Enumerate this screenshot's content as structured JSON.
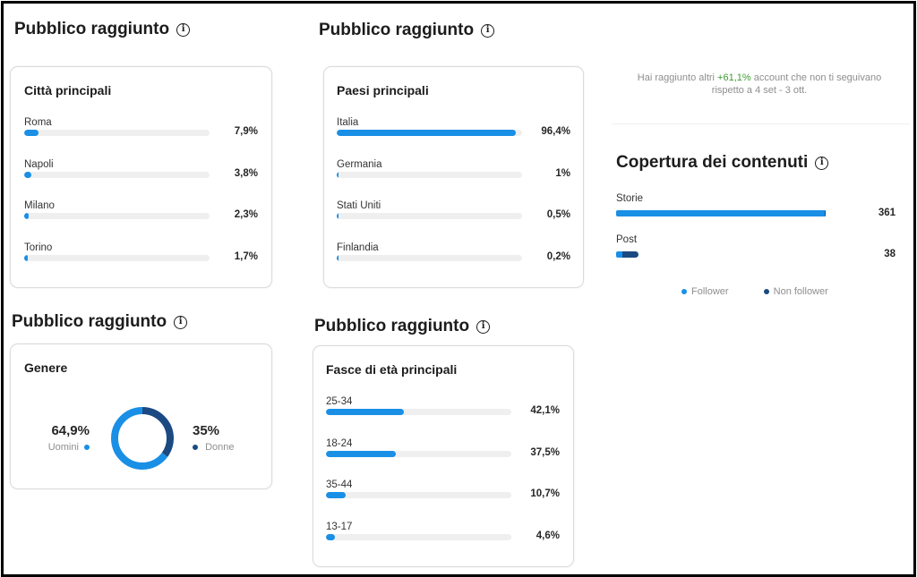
{
  "section_title": "Pubblico raggiunto",
  "cities": {
    "title": "Città principali",
    "rows": [
      {
        "label": "Roma",
        "value": 7.9,
        "display": "7,9%"
      },
      {
        "label": "Napoli",
        "value": 3.8,
        "display": "3,8%"
      },
      {
        "label": "Milano",
        "value": 2.3,
        "display": "2,3%"
      },
      {
        "label": "Torino",
        "value": 1.7,
        "display": "1,7%"
      }
    ]
  },
  "countries": {
    "title": "Paesi principali",
    "rows": [
      {
        "label": "Italia",
        "value": 96.4,
        "display": "96,4%"
      },
      {
        "label": "Germania",
        "value": 1,
        "display": "1%"
      },
      {
        "label": "Stati Uniti",
        "value": 0.5,
        "display": "0,5%"
      },
      {
        "label": "Finlandia",
        "value": 0.2,
        "display": "0,2%"
      }
    ]
  },
  "gender": {
    "title": "Genere",
    "men_value": "64,9%",
    "men_label": "Uomini",
    "women_value": "35%",
    "women_label": "Donne"
  },
  "ages": {
    "title": "Fasce di età principali",
    "rows": [
      {
        "label": "25-34",
        "value": 42.1,
        "display": "42,1%"
      },
      {
        "label": "18-24",
        "value": 37.5,
        "display": "37,5%"
      },
      {
        "label": "35-44",
        "value": 10.7,
        "display": "10,7%"
      },
      {
        "label": "13-17",
        "value": 4.6,
        "display": "4,6%"
      }
    ]
  },
  "reach_note": {
    "prefix": "Hai raggiunto altri ",
    "highlight": "+61,1%",
    "suffix": " account che non ti seguivano",
    "line2": "rispetto a 4 set - 3 ott."
  },
  "coverage": {
    "title": "Copertura dei contenuti",
    "rows": [
      {
        "label": "Storie",
        "total_display": "361",
        "total": 361,
        "follower": 359,
        "non_follower": 2
      },
      {
        "label": "Post",
        "total_display": "38",
        "total": 38,
        "follower": 11,
        "non_follower": 27
      }
    ],
    "legend": {
      "follower": "Follower",
      "non_follower": "Non follower"
    }
  },
  "colors": {
    "follower": "#1a8fe6",
    "non_follower": "#1b4a82",
    "track": "#efefef",
    "accent_green": "#3f9c35"
  },
  "chart_data": [
    {
      "type": "bar",
      "title": "Città principali",
      "categories": [
        "Roma",
        "Napoli",
        "Milano",
        "Torino"
      ],
      "values": [
        7.9,
        3.8,
        2.3,
        1.7
      ],
      "unit": "%"
    },
    {
      "type": "bar",
      "title": "Paesi principali",
      "categories": [
        "Italia",
        "Germania",
        "Stati Uniti",
        "Finlandia"
      ],
      "values": [
        96.4,
        1,
        0.5,
        0.2
      ],
      "unit": "%"
    },
    {
      "type": "pie",
      "title": "Genere",
      "categories": [
        "Uomini",
        "Donne"
      ],
      "values": [
        64.9,
        35
      ],
      "unit": "%"
    },
    {
      "type": "bar",
      "title": "Fasce di età principali",
      "categories": [
        "25-34",
        "18-24",
        "35-44",
        "13-17"
      ],
      "values": [
        42.1,
        37.5,
        10.7,
        4.6
      ],
      "unit": "%"
    },
    {
      "type": "bar",
      "title": "Copertura dei contenuti",
      "categories": [
        "Storie",
        "Post"
      ],
      "totals": [
        361,
        38
      ],
      "series": [
        {
          "name": "Follower",
          "values": [
            359,
            11
          ]
        },
        {
          "name": "Non follower",
          "values": [
            2,
            27
          ]
        }
      ],
      "legend": "bottom"
    }
  ]
}
